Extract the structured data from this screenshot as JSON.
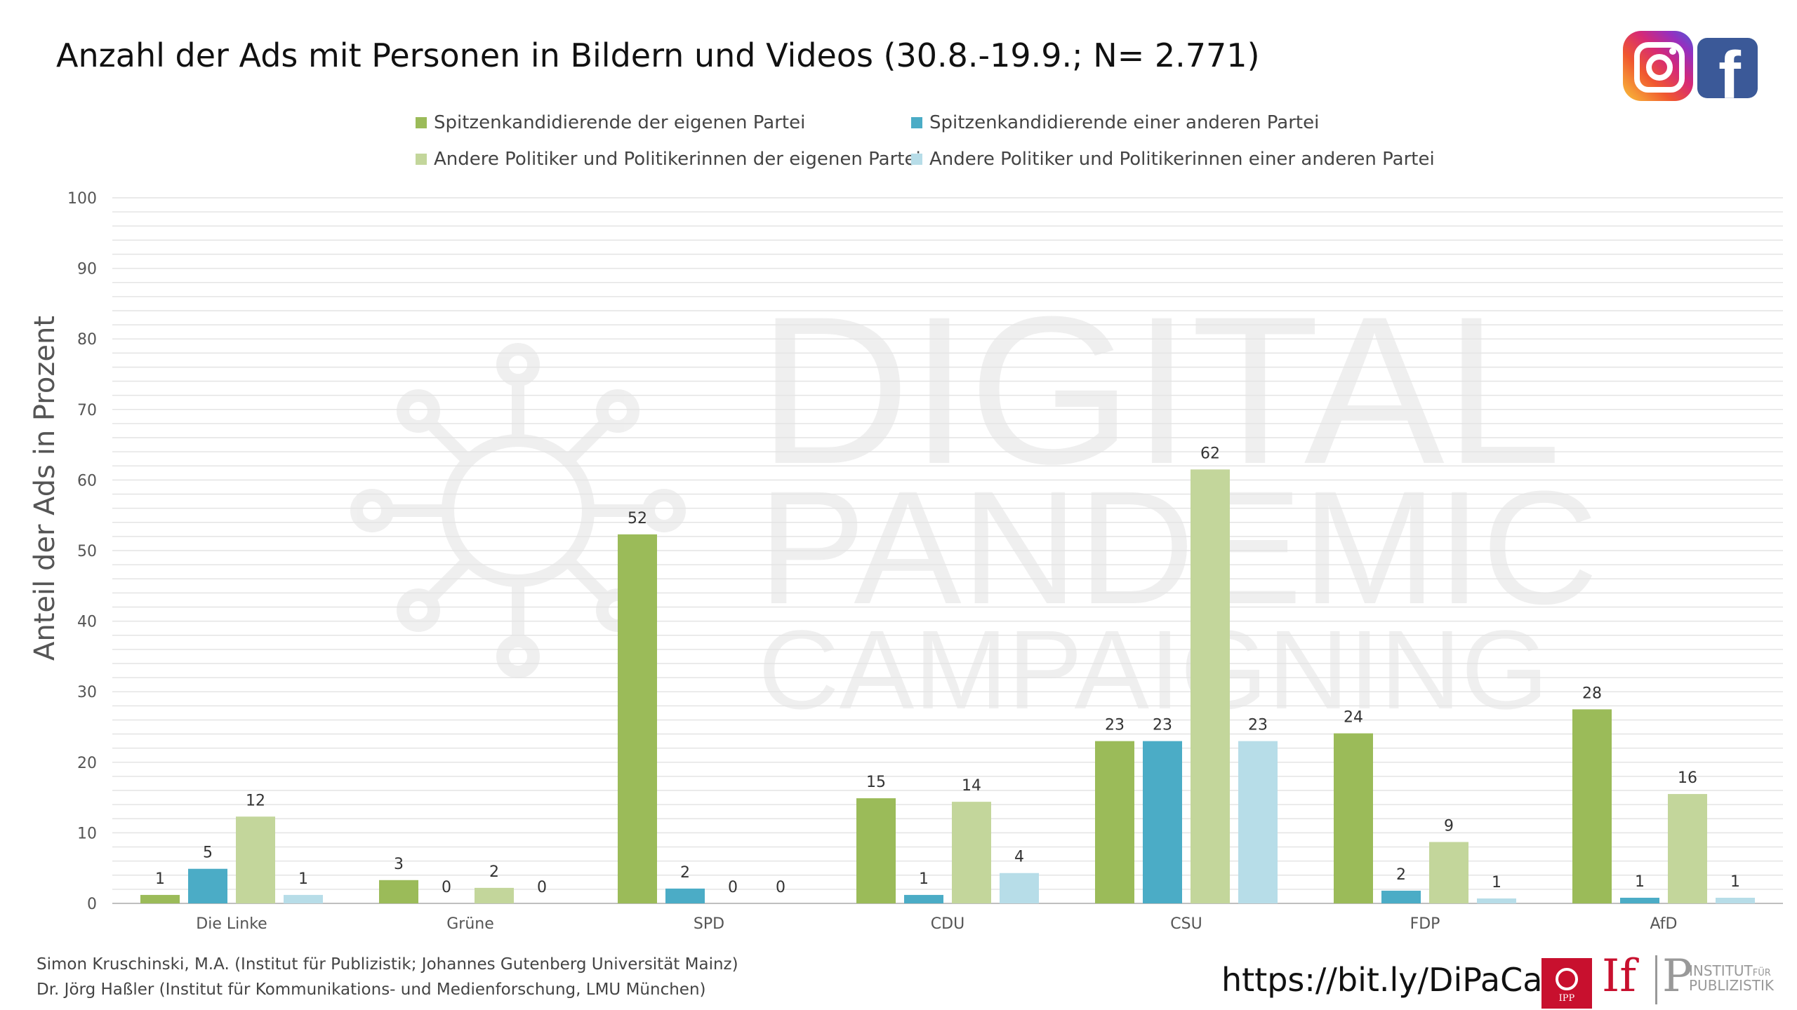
{
  "title": "Anzahl der Ads mit Personen in Bildern und Videos (30.8.-19.9.; N= 2.771)",
  "icons": [
    "instagram-logo",
    "facebook-logo",
    "ipp-logo",
    "ifp-logo"
  ],
  "watermark": {
    "line1": "DIGITAL",
    "line2": "PANDEMIC",
    "line3": "CAMPAIGNING"
  },
  "colors": {
    "spitzen_eigen": "#9bbb59",
    "spitzen_andere": "#4bacc6",
    "andere_eigen": "#c3d69b",
    "andere_andere": "#b7dde8"
  },
  "chart_data": {
    "type": "bar",
    "title": "Anzahl der Ads mit Personen in Bildern und Videos (30.8.-19.9.; N= 2.771)",
    "xlabel": "",
    "ylabel": "Anteil der Ads in Prozent",
    "ylim": [
      0,
      100
    ],
    "yticks": [
      0,
      10,
      20,
      30,
      40,
      50,
      60,
      70,
      80,
      90,
      100
    ],
    "grid": true,
    "legend_position": "top",
    "categories": [
      "Die Linke",
      "Grüne",
      "SPD",
      "CDU",
      "CSU",
      "FDP",
      "AfD"
    ],
    "series": [
      {
        "name": "Spitzenkandidierende der eigenen Partei",
        "color": "#9bbb59",
        "values": [
          1.2,
          3.3,
          52.3,
          14.9,
          23.0,
          24.1,
          27.5
        ],
        "labels": [
          "1",
          "3",
          "52",
          "15",
          "23",
          "24",
          "28"
        ]
      },
      {
        "name": "Spitzenkandidierende einer anderen Partei",
        "color": "#4bacc6",
        "values": [
          4.9,
          0,
          2.1,
          1.2,
          23.0,
          1.8,
          0.8
        ],
        "labels": [
          "5",
          "0",
          "2",
          "1",
          "23",
          "2",
          "1"
        ]
      },
      {
        "name": "Andere Politiker und Politikerinnen der eigenen Partei",
        "color": "#c3d69b",
        "values": [
          12.3,
          2.2,
          0,
          14.4,
          61.5,
          8.7,
          15.5
        ],
        "labels": [
          "12",
          "2",
          "0",
          "14",
          "62",
          "9",
          "16"
        ]
      },
      {
        "name": "Andere Politiker und Politikerinnen einer anderen Partei",
        "color": "#b7dde8",
        "values": [
          1.2,
          0,
          0,
          4.3,
          23.0,
          0.7,
          0.8
        ],
        "labels": [
          "1",
          "0",
          "0",
          "4",
          "23",
          "1",
          "1"
        ]
      }
    ]
  },
  "footer": {
    "line1": "Simon Kruschinski, M.A. (Institut für Publizistik; Johannes Gutenberg Universität Mainz)",
    "line2": "Dr. Jörg Haßler (Institut für Kommunikations- und Medienforschung, LMU München)",
    "url": "https://bit.ly/DiPaCa",
    "ipp_label": "IPP",
    "ifp_if": "If",
    "ifp_p": "P",
    "ifp_inst1": "INSTITUT",
    "ifp_inst_fuer": "FÜR",
    "ifp_inst2": "PUBLIZISTIK"
  }
}
